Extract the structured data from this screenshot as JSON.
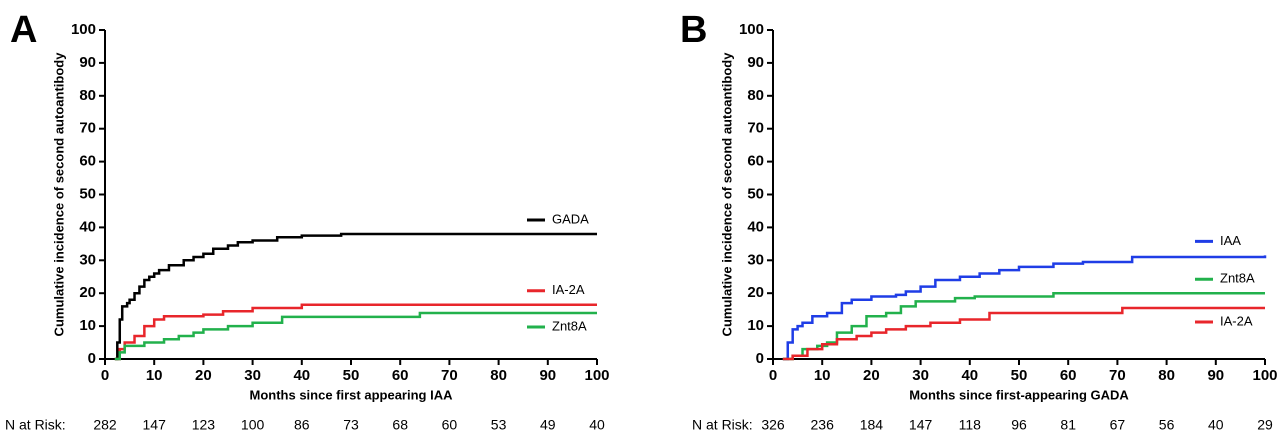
{
  "chart_data": [
    {
      "type": "line",
      "step": true,
      "panel_label": "A",
      "ylabel": "Cumulative incidence of second autoantibody",
      "xlabel": "Months since first appearing IAA",
      "xlim": [
        0,
        100
      ],
      "xticks": [
        0,
        10,
        20,
        30,
        40,
        50,
        60,
        70,
        80,
        90,
        100
      ],
      "ylim": [
        0,
        100
      ],
      "yticks": [
        0,
        10,
        20,
        30,
        40,
        50,
        60,
        70,
        80,
        90,
        100
      ],
      "risk_label": "N at Risk:",
      "n_at_risk": [
        282,
        147,
        123,
        100,
        86,
        73,
        68,
        60,
        53,
        49,
        40
      ],
      "series": [
        {
          "name": "GADA",
          "color": "#000000",
          "x": [
            2,
            2.5,
            3,
            3.5,
            4.5,
            5,
            6,
            7,
            8,
            9,
            10,
            11,
            13,
            16,
            18,
            20,
            22,
            25,
            27,
            30,
            35,
            40,
            48,
            100
          ],
          "values": [
            0,
            5,
            12,
            16,
            17,
            18,
            20,
            22,
            24,
            25,
            26,
            27,
            28.5,
            30,
            31,
            32,
            33.5,
            34.5,
            35.5,
            36,
            37,
            37.5,
            38,
            38
          ]
        },
        {
          "name": "IA-2A",
          "color": "#e8262b",
          "x": [
            2,
            3,
            4,
            6,
            8,
            10,
            12,
            20,
            24,
            30,
            40,
            100
          ],
          "values": [
            0,
            3,
            5,
            7,
            10,
            12,
            13,
            13.5,
            14.5,
            15.5,
            16.5,
            16.5
          ]
        },
        {
          "name": "Znt8A",
          "color": "#22b14c",
          "x": [
            2,
            3,
            4,
            8,
            12,
            15,
            18,
            20,
            25,
            30,
            36,
            64,
            100
          ],
          "values": [
            0,
            2,
            4,
            5,
            6,
            7,
            8,
            9,
            10,
            11,
            12.8,
            14,
            14
          ]
        }
      ]
    },
    {
      "type": "line",
      "step": true,
      "panel_label": "B",
      "ylabel": "Cumulative incidence of second autoantibody",
      "xlabel": "Months since first-appearing GADA",
      "xlim": [
        0,
        100
      ],
      "xticks": [
        0,
        10,
        20,
        30,
        40,
        50,
        60,
        70,
        80,
        90,
        100
      ],
      "ylim": [
        0,
        100
      ],
      "yticks": [
        0,
        10,
        20,
        30,
        40,
        50,
        60,
        70,
        80,
        90,
        100
      ],
      "risk_label": "N at Risk:",
      "n_at_risk": [
        326,
        236,
        184,
        147,
        118,
        96,
        81,
        67,
        56,
        40,
        29
      ],
      "series": [
        {
          "name": "IAA",
          "color": "#1f3de6",
          "x": [
            2,
            3,
            4,
            5,
            6,
            8,
            11,
            14,
            16,
            20,
            25,
            27,
            30,
            33,
            38,
            42,
            46,
            50,
            57,
            63,
            73,
            100
          ],
          "values": [
            0,
            5,
            9,
            10,
            11,
            13,
            14,
            17,
            18,
            19,
            19.5,
            20.5,
            22,
            24,
            25,
            26,
            27,
            28,
            29,
            29.5,
            31,
            31.5
          ]
        },
        {
          "name": "Znt8A",
          "color": "#22b14c",
          "x": [
            2,
            4,
            6,
            9,
            11,
            13,
            16,
            19,
            23,
            26,
            29,
            37,
            41,
            57,
            100
          ],
          "values": [
            0,
            1,
            3,
            4,
            5,
            8,
            10,
            13,
            14,
            16,
            17.5,
            18.5,
            19,
            20,
            20
          ]
        },
        {
          "name": "IA-2A",
          "color": "#e8262b",
          "x": [
            2,
            4,
            7,
            10,
            13,
            17,
            20,
            23,
            27,
            32,
            38,
            44,
            71,
            100
          ],
          "values": [
            0,
            1,
            3,
            4.5,
            6,
            7,
            8,
            9,
            10,
            11,
            12,
            14,
            15.5,
            15.5
          ]
        }
      ]
    }
  ]
}
